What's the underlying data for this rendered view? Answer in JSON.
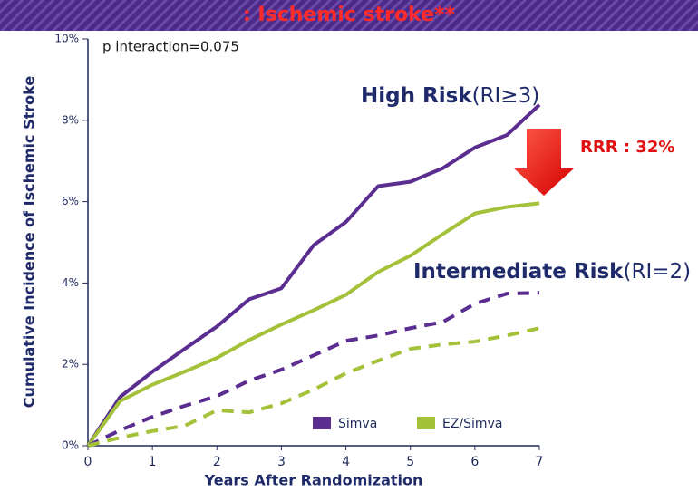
{
  "banner": ": Ischemic stroke**",
  "chart_data": {
    "type": "line",
    "x": [
      0,
      0.5,
      1,
      1.5,
      2,
      2.5,
      3,
      3.5,
      4,
      4.5,
      5,
      5.5,
      6,
      6.5,
      7
    ],
    "series": [
      {
        "name": "Simva",
        "color": "#5b2d91",
        "dashed": false,
        "values": [
          0,
          1.2,
          1.82,
          2.38,
          2.93,
          3.6,
          3.87,
          4.93,
          5.5,
          6.38,
          6.49,
          6.82,
          7.33,
          7.64,
          8.38
        ]
      },
      {
        "name": "EZ/Simva",
        "color": "#a4c13a",
        "dashed": false,
        "values": [
          0,
          1.1,
          1.5,
          1.82,
          2.16,
          2.6,
          2.98,
          3.33,
          3.71,
          4.27,
          4.67,
          5.2,
          5.71,
          5.87,
          5.96
        ]
      },
      {
        "name": "Simva",
        "color": "#5b2d91",
        "dashed": true,
        "values": [
          0,
          0.38,
          0.71,
          0.98,
          1.22,
          1.6,
          1.87,
          2.22,
          2.58,
          2.71,
          2.89,
          3.04,
          3.49,
          3.74,
          3.76
        ]
      },
      {
        "name": "EZ/Simva",
        "color": "#a4c13a",
        "dashed": true,
        "values": [
          0,
          0.2,
          0.36,
          0.49,
          0.87,
          0.82,
          1.04,
          1.38,
          1.78,
          2.09,
          2.38,
          2.49,
          2.56,
          2.71,
          2.89
        ]
      }
    ],
    "xlabel": "Years After Randomization",
    "ylabel": "Cumulative Incidence of Ischemic Stroke",
    "xlim": [
      0,
      7
    ],
    "xticks": [
      0,
      1,
      2,
      3,
      4,
      5,
      6,
      7
    ],
    "ylim": [
      0,
      10
    ],
    "yticks": [
      {
        "value": 0,
        "label": "0%"
      },
      {
        "value": 2,
        "label": "2%"
      },
      {
        "value": 4,
        "label": "4%"
      },
      {
        "value": 6,
        "label": "6%"
      },
      {
        "value": 8,
        "label": "8%"
      },
      {
        "value": 10,
        "label": "10%"
      }
    ],
    "annotations": {
      "p_value": "p interaction=0.075",
      "high_risk": {
        "bold": "High Risk",
        "rest": "(RI≥3)"
      },
      "intermediate_risk": {
        "bold": "Intermediate Risk",
        "rest": "(RI=2)"
      },
      "rrr": "RRR : 32%"
    },
    "legend_series": [
      0,
      1
    ]
  }
}
